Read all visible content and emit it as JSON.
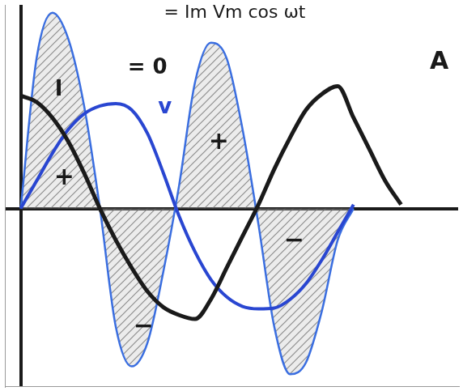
{
  "chart_data": {
    "type": "line",
    "title": "= Im Vm cos ωt",
    "x": [
      0,
      20,
      40,
      60,
      80,
      100,
      120,
      140,
      160,
      180,
      200,
      220,
      240,
      260,
      280,
      300,
      320,
      340,
      360,
      380,
      400,
      420,
      440,
      460,
      480
    ],
    "series": [
      {
        "type": "line",
        "color": "#1a1a1a",
        "values": [
          143,
          135,
          115,
          85,
          45,
          0,
          -40,
          -75,
          -105,
          -125,
          -135,
          -140,
          -115,
          -75,
          -35,
          5,
          50,
          90,
          125,
          145,
          155,
          115,
          75,
          35,
          5
        ]
      },
      {
        "type": "line",
        "color": "#2946d1",
        "values": [
          0,
          35,
          70,
          100,
          120,
          130,
          133,
          125,
          95,
          45,
          -10,
          -55,
          -90,
          -112,
          -124,
          -127,
          -126,
          -115,
          -95,
          -65,
          -30,
          5,
          null,
          null,
          null
        ]
      },
      {
        "type": "area",
        "color": "#3a6ee0",
        "values": [
          0,
          190,
          248,
          215,
          130,
          0,
          -150,
          -200,
          -170,
          -80,
          30,
          160,
          210,
          190,
          100,
          -20,
          -150,
          -210,
          -195,
          -130,
          -40,
          0,
          null,
          null,
          null
        ]
      }
    ],
    "xlim": [
      -20,
      552
    ],
    "ylim": [
      -225,
      258
    ],
    "xticks": [
      0
    ],
    "yticks": [
      0
    ],
    "grid": true,
    "tick_labels": false,
    "annotations": [
      {
        "text": "I",
        "x": 48,
        "y": 150,
        "color": "#1a1a1a"
      },
      {
        "text": "+",
        "x": 55,
        "y": 38,
        "color": "#1a1a1a"
      },
      {
        "text": "v",
        "x": 182,
        "y": 128,
        "color": "#2946d1"
      },
      {
        "text": "= 0",
        "x": 160,
        "y": 178,
        "color": "#1a1a1a"
      },
      {
        "text": "+",
        "x": 250,
        "y": 83,
        "color": "#1a1a1a"
      },
      {
        "text": "−",
        "x": 155,
        "y": -150,
        "color": "#1a1a1a"
      },
      {
        "text": "−",
        "x": 345,
        "y": -42,
        "color": "#1a1a1a"
      },
      {
        "text": "A",
        "x": 528,
        "y": 185,
        "color": "#1a1a1a"
      }
    ]
  }
}
